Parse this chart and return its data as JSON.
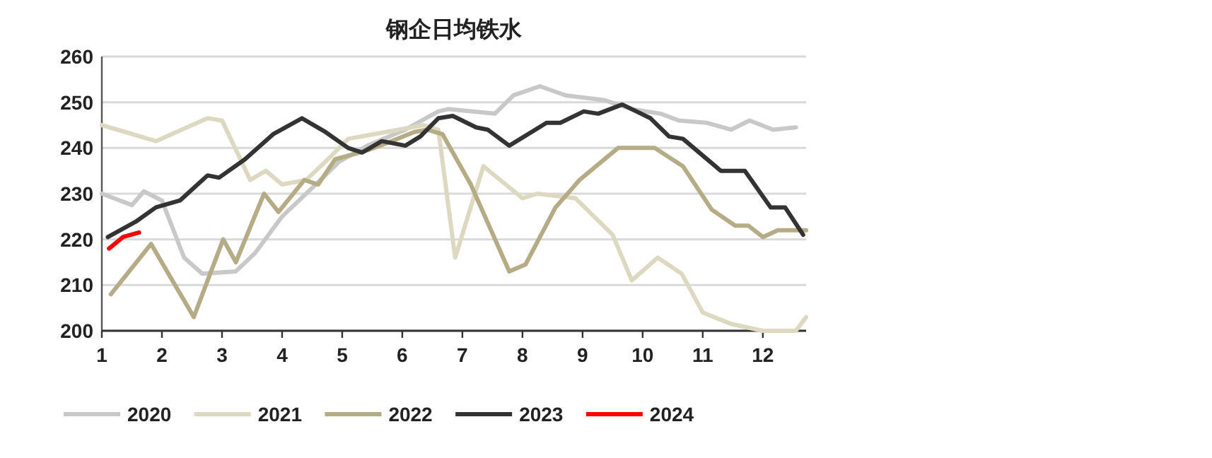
{
  "chart_data": {
    "type": "line",
    "title": "钢企日均铁水",
    "xlim": [
      1,
      12.72
    ],
    "xticks": [
      1,
      2,
      3,
      4,
      5,
      6,
      7,
      8,
      9,
      10,
      11,
      12
    ],
    "ylim": [
      200,
      260
    ],
    "yticks": [
      200,
      210,
      220,
      230,
      240,
      250,
      260
    ],
    "grid": "y",
    "legend": "bottom",
    "series": [
      {
        "name": "2020",
        "color": "#c8c8c8",
        "x": [
          1,
          1.5,
          1.7,
          2,
          2.37,
          2.67,
          3.23,
          3.55,
          4,
          4.48,
          4.95,
          5.42,
          6.05,
          6.6,
          6.76,
          7.54,
          7.85,
          8.29,
          8.72,
          9.35,
          9.82,
          10.3,
          10.6,
          11.07,
          11.47,
          11.78,
          12.17,
          12.55
        ],
        "values": [
          230,
          227.5,
          230.5,
          228.5,
          216,
          212.5,
          213,
          217,
          225,
          231,
          237,
          240.5,
          244,
          248,
          248.5,
          247.5,
          251.5,
          253.5,
          251.5,
          250.5,
          248.5,
          247.5,
          246,
          245.5,
          244,
          246,
          244,
          244.5
        ]
      },
      {
        "name": "2021",
        "color": "#ddd8c0",
        "x": [
          1,
          1.9,
          2.76,
          3,
          3.47,
          3.73,
          4,
          4.4,
          4.8,
          5.1,
          6.36,
          6.6,
          6.88,
          7.35,
          8,
          8.25,
          8.88,
          9.5,
          9.82,
          10.25,
          10.65,
          11,
          11.47,
          11.82,
          12.0,
          12.55,
          12.72
        ],
        "values": [
          245,
          241.5,
          246.5,
          246,
          233,
          235,
          232,
          233,
          238,
          242,
          245,
          244,
          216,
          236,
          229,
          230,
          229,
          221,
          211,
          216,
          212.5,
          204,
          201.5,
          200.5,
          200,
          200,
          203
        ]
      },
      {
        "name": "2022",
        "color": "#b5ab85",
        "x": [
          1.15,
          1.82,
          2.53,
          3.02,
          3.23,
          3.7,
          3.94,
          4.37,
          4.6,
          4.88,
          5.42,
          5.73,
          6.2,
          6.41,
          6.67,
          7.14,
          7.78,
          8.05,
          8.55,
          8.95,
          9.59,
          10.2,
          10.67,
          11.15,
          11.54,
          11.76,
          12,
          12.25,
          12.72
        ],
        "values": [
          208,
          219,
          203,
          220,
          215,
          230,
          226,
          233,
          232,
          237.5,
          239.5,
          241,
          243.5,
          244,
          243,
          232,
          213,
          214.5,
          227,
          233,
          240,
          240,
          236,
          226.5,
          223,
          223,
          220.5,
          222,
          222
        ]
      },
      {
        "name": "2023",
        "color": "#333333",
        "x": [
          1.1,
          1.58,
          1.9,
          2.3,
          2.76,
          2.95,
          3.38,
          3.85,
          4.33,
          4.72,
          5.1,
          5.33,
          5.66,
          6.05,
          6.3,
          6.6,
          6.84,
          7.23,
          7.42,
          7.78,
          8.4,
          8.63,
          9.02,
          9.26,
          9.66,
          10.13,
          10.44,
          10.67,
          11.3,
          11.7,
          12.13,
          12.37,
          12.67
        ],
        "values": [
          220.5,
          224,
          227,
          228.5,
          234,
          233.5,
          237.5,
          243,
          246.5,
          243.5,
          240,
          239,
          241.5,
          240.5,
          242.5,
          246.5,
          247,
          244.5,
          244,
          240.5,
          245.5,
          245.5,
          248,
          247.5,
          249.5,
          246.5,
          242.5,
          242,
          235,
          235,
          227,
          227,
          221
        ]
      },
      {
        "name": "2024",
        "color": "#ff0000",
        "x": [
          1.12,
          1.35,
          1.62
        ],
        "values": [
          218,
          220.5,
          221.5
        ]
      }
    ]
  }
}
